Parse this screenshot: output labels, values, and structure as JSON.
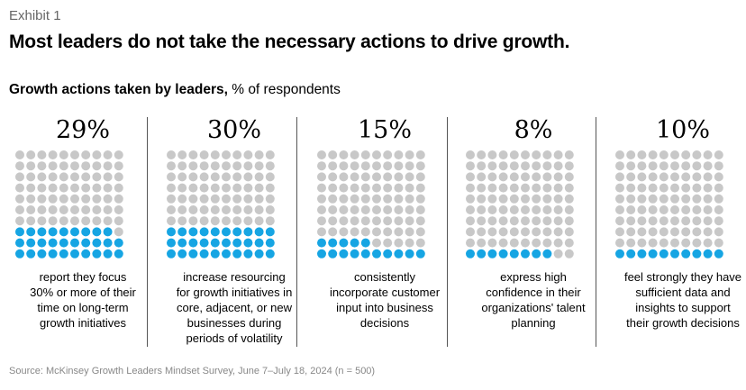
{
  "exhibit_label": "Exhibit 1",
  "title": "Most leaders do not take the necessary actions to drive growth.",
  "subtitle_bold": "Growth actions taken by leaders,",
  "subtitle_rest": " % of respondents",
  "source": "Source: McKinsey Growth Leaders Mindset Survey, June 7–July 18, 2024 (n = 500)",
  "colors": {
    "filled": "#16A5E3",
    "empty": "#C8C8C8"
  },
  "chart_data": {
    "type": "waffle",
    "grid": {
      "rows": 10,
      "cols": 10
    },
    "panels": [
      {
        "value": 29,
        "label": "29%",
        "description": [
          "report they focus",
          "30% or more of their",
          "time on long-term",
          "growth initiatives"
        ]
      },
      {
        "value": 30,
        "label": "30%",
        "description": [
          "increase resourcing",
          "for growth initiatives in",
          "core, adjacent, or new",
          "businesses during",
          "periods of volatility"
        ]
      },
      {
        "value": 15,
        "label": "15%",
        "description": [
          "consistently",
          "incorporate customer",
          "input into business",
          "decisions"
        ]
      },
      {
        "value": 8,
        "label": "8%",
        "description": [
          "express high",
          "confidence in their",
          "organizations' talent",
          "planning"
        ]
      },
      {
        "value": 10,
        "label": "10%",
        "description": [
          "feel strongly they have",
          "sufficient data and",
          "insights to support",
          "their growth decisions"
        ]
      }
    ]
  }
}
